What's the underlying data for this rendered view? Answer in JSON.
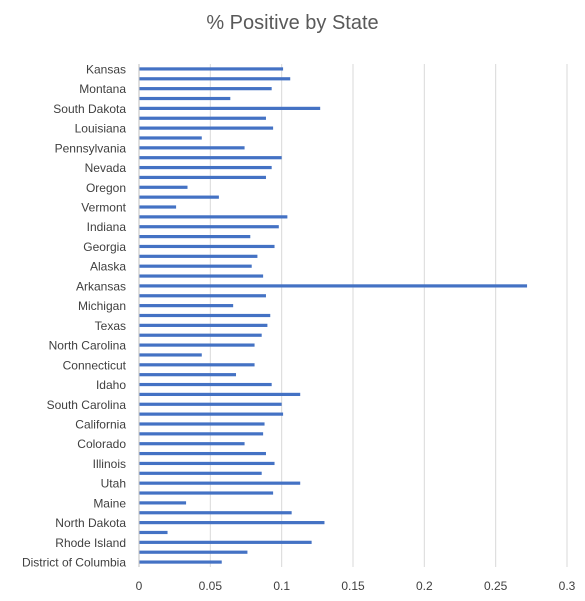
{
  "chart_data": {
    "type": "bar",
    "orientation": "horizontal",
    "title": "% Positive by State",
    "xlabel": "",
    "ylabel": "",
    "xlim": [
      0,
      0.3
    ],
    "xticks": [
      0,
      0.05,
      0.1,
      0.15,
      0.2,
      0.25,
      0.3
    ],
    "xtick_labels": [
      "0",
      "0.05",
      "0.1",
      "0.15",
      "0.2",
      "0.25",
      "0.3"
    ],
    "grid": "vertical",
    "legend": "none",
    "bar_color": "#4472c4",
    "categories": [
      "Kansas",
      "",
      "Montana",
      "",
      "South Dakota",
      "",
      "Louisiana",
      "",
      "Pennsylvania",
      "",
      "Nevada",
      "",
      "Oregon",
      "",
      "Vermont",
      "",
      "Indiana",
      "",
      "Georgia",
      "",
      "Alaska",
      "",
      "Arkansas",
      "",
      "Michigan",
      "",
      "Texas",
      "",
      "North Carolina",
      "",
      "Connecticut",
      "",
      "Idaho",
      "",
      "South Carolina",
      "",
      "California",
      "",
      "Colorado",
      "",
      "Illinois",
      "",
      "Utah",
      "",
      "Maine",
      "",
      "North Dakota",
      "",
      "Rhode Island",
      "",
      "District of Columbia"
    ],
    "values": [
      0.101,
      0.106,
      0.093,
      0.064,
      0.127,
      0.089,
      0.094,
      0.044,
      0.074,
      0.1,
      0.093,
      0.089,
      0.034,
      0.056,
      0.026,
      0.104,
      0.098,
      0.078,
      0.095,
      0.083,
      0.079,
      0.087,
      0.272,
      0.089,
      0.066,
      0.092,
      0.09,
      0.086,
      0.081,
      0.044,
      0.081,
      0.068,
      0.093,
      0.113,
      0.1,
      0.101,
      0.088,
      0.087,
      0.074,
      0.089,
      0.095,
      0.086,
      0.113,
      0.094,
      0.033,
      0.107,
      0.13,
      0.02,
      0.121,
      0.076,
      0.058
    ]
  }
}
